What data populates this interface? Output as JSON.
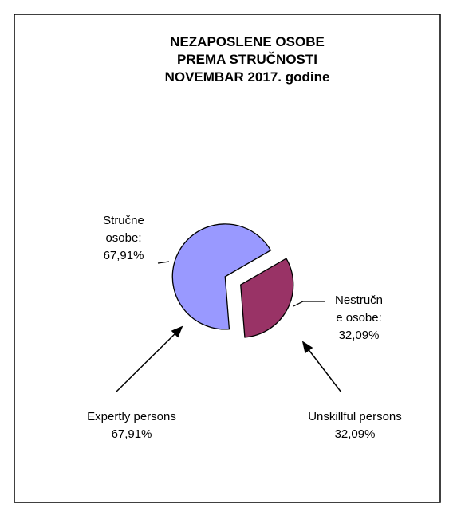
{
  "chart_data": {
    "type": "pie",
    "title_lines": [
      "NEZAPOSLENE OSOBE",
      "PREMA STRUČNOSTI",
      "NOVEMBAR 2017. godine"
    ],
    "categories": [
      "Stručne osobe:",
      "Nestručne osobe:"
    ],
    "values": [
      67.91,
      32.09
    ],
    "value_labels": [
      "67,91%",
      "32,09%"
    ],
    "colors": [
      "#9999ff",
      "#993366"
    ],
    "annotations": [
      "Expertly persons 67,91%",
      "Unskillful persons 32,09%"
    ]
  }
}
